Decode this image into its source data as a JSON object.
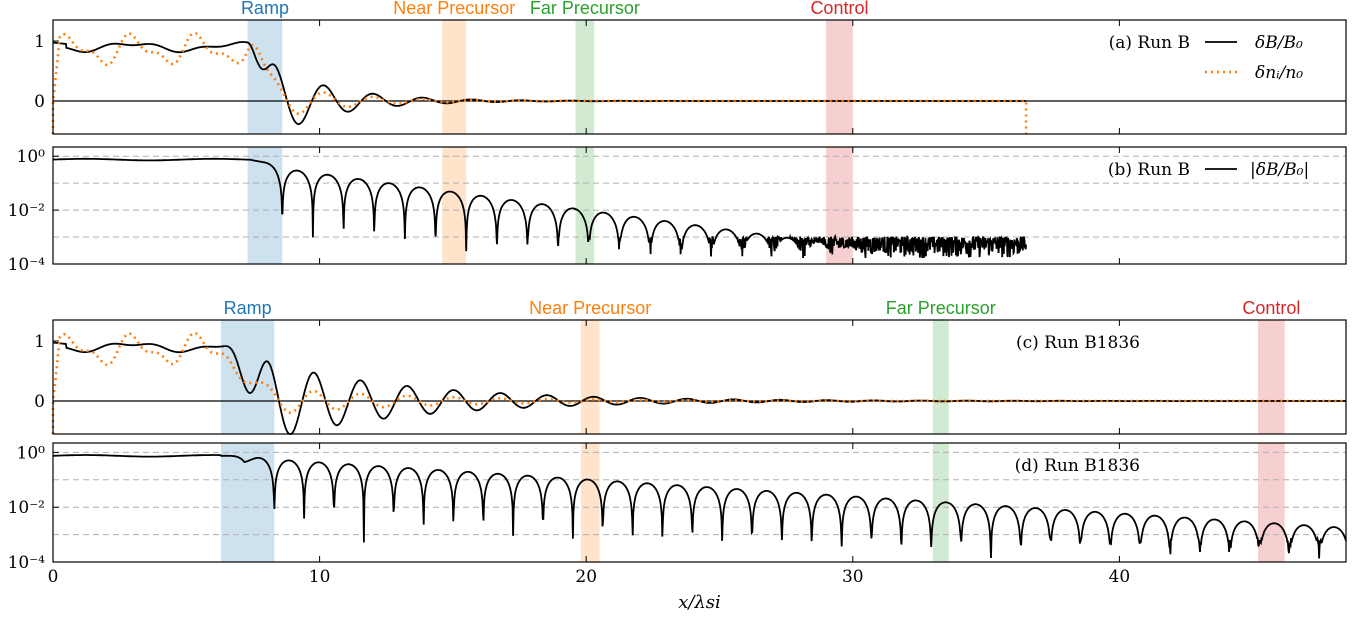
{
  "colors": {
    "ramp": "#1f77b4",
    "near": "#ff7f0e",
    "far": "#2ca02c",
    "control": "#d62728",
    "dB": "#000000",
    "dn": "#ff7f0e",
    "grid": "#b0b0b0"
  },
  "chart_data": [
    {
      "id": "a",
      "type": "line",
      "panel_label": "(a) Run B",
      "run": "B",
      "scale": "linear",
      "xlim": [
        0,
        48.5
      ],
      "ylim": [
        -0.55,
        1.35
      ],
      "yticks": [
        {
          "value": 0,
          "label": "0"
        },
        {
          "value": 1,
          "label": "1"
        }
      ],
      "regions": [
        {
          "name": "Ramp",
          "x0": 7.3,
          "x1": 8.6
        },
        {
          "name": "Near Precursor",
          "x0": 14.6,
          "x1": 15.5
        },
        {
          "name": "Far Precursor",
          "x0": 19.6,
          "x1": 20.3
        },
        {
          "name": "Control",
          "x0": 29.0,
          "x1": 30.0
        }
      ],
      "series": [
        {
          "key": "dB",
          "name": "δB/B₀",
          "x_end": 36.5
        },
        {
          "key": "dn",
          "name": "δnᵢ/n₀",
          "x_end": 36.5
        }
      ],
      "shock": {
        "x_ramp_start": 7.3,
        "x_ramp_end": 8.6,
        "wavelength": 1.85,
        "amplitude": 0.5,
        "decay_length": 2.4,
        "density_ratio": 0.55
      }
    },
    {
      "id": "b",
      "type": "line",
      "panel_label": "(b) Run B",
      "run": "B",
      "scale": "log",
      "xlim": [
        0,
        48.5
      ],
      "ylim": [
        0.0001,
        2.2
      ],
      "yticks": [
        {
          "value": 1,
          "label": "10⁰"
        },
        {
          "value": 0.01,
          "label": "10⁻²"
        },
        {
          "value": 0.0001,
          "label": "10⁻⁴"
        }
      ],
      "gridlines": [
        1,
        0.1,
        0.01,
        0.001
      ],
      "regions": [
        {
          "name": "Ramp",
          "x0": 7.3,
          "x1": 8.6
        },
        {
          "name": "Near Precursor",
          "x0": 14.6,
          "x1": 15.5
        },
        {
          "name": "Far Precursor",
          "x0": 19.6,
          "x1": 20.3
        },
        {
          "name": "Control",
          "x0": 29.0,
          "x1": 30.0
        }
      ],
      "series": [
        {
          "key": "absdB",
          "name": "|δB/B₀|",
          "x_end": 36.5
        }
      ],
      "shock": {
        "x_ramp_start": 7.3,
        "x_ramp_end": 8.6,
        "wavelength": 1.15,
        "amplitude": 0.35,
        "decay_length": 3.2,
        "noise_floor": 0.00055
      }
    },
    {
      "id": "c",
      "type": "line",
      "panel_label": "(c) Run B1836",
      "run": "B1836",
      "scale": "linear",
      "xlim": [
        0,
        48.5
      ],
      "ylim": [
        -0.55,
        1.35
      ],
      "yticks": [
        {
          "value": 0,
          "label": "0"
        },
        {
          "value": 1,
          "label": "1"
        }
      ],
      "regions": [
        {
          "name": "Ramp",
          "x0": 6.3,
          "x1": 8.3
        },
        {
          "name": "Near Precursor",
          "x0": 19.8,
          "x1": 20.5
        },
        {
          "name": "Far Precursor",
          "x0": 33.0,
          "x1": 33.6
        },
        {
          "name": "Control",
          "x0": 45.2,
          "x1": 46.2
        }
      ],
      "series": [
        {
          "key": "dB",
          "name": "δB/B₀",
          "x_end": 48.5
        },
        {
          "key": "dn",
          "name": "δnᵢ/n₀",
          "x_end": 48.5
        }
      ],
      "shock": {
        "x_ramp_start": 6.3,
        "x_ramp_end": 8.3,
        "wavelength": 1.75,
        "amplitude": 0.62,
        "decay_length": 5.5,
        "density_ratio": 0.35
      }
    },
    {
      "id": "d",
      "type": "line",
      "panel_label": "(d) Run B1836",
      "run": "B1836",
      "scale": "log",
      "xlim": [
        0,
        48.5
      ],
      "ylim": [
        0.0001,
        2.2
      ],
      "yticks": [
        {
          "value": 1,
          "label": "10⁰"
        },
        {
          "value": 0.01,
          "label": "10⁻²"
        },
        {
          "value": 0.0001,
          "label": "10⁻⁴"
        }
      ],
      "gridlines": [
        1,
        0.1,
        0.01,
        0.001
      ],
      "regions": [
        {
          "name": "Ramp",
          "x0": 6.3,
          "x1": 8.3
        },
        {
          "name": "Near Precursor",
          "x0": 19.8,
          "x1": 20.5
        },
        {
          "name": "Far Precursor",
          "x0": 33.0,
          "x1": 33.6
        },
        {
          "name": "Control",
          "x0": 45.2,
          "x1": 46.2
        }
      ],
      "series": [
        {
          "key": "absdB",
          "name": "|δB/B₀|",
          "x_end": 48.5
        }
      ],
      "shock": {
        "x_ramp_start": 6.3,
        "x_ramp_end": 8.3,
        "wavelength": 1.12,
        "amplitude": 0.55,
        "decay_length": 7.0,
        "noise_floor": 0.0004
      }
    }
  ],
  "xaxis": {
    "label": "x/λsi",
    "ticks": [
      0,
      10,
      20,
      30,
      40
    ]
  }
}
